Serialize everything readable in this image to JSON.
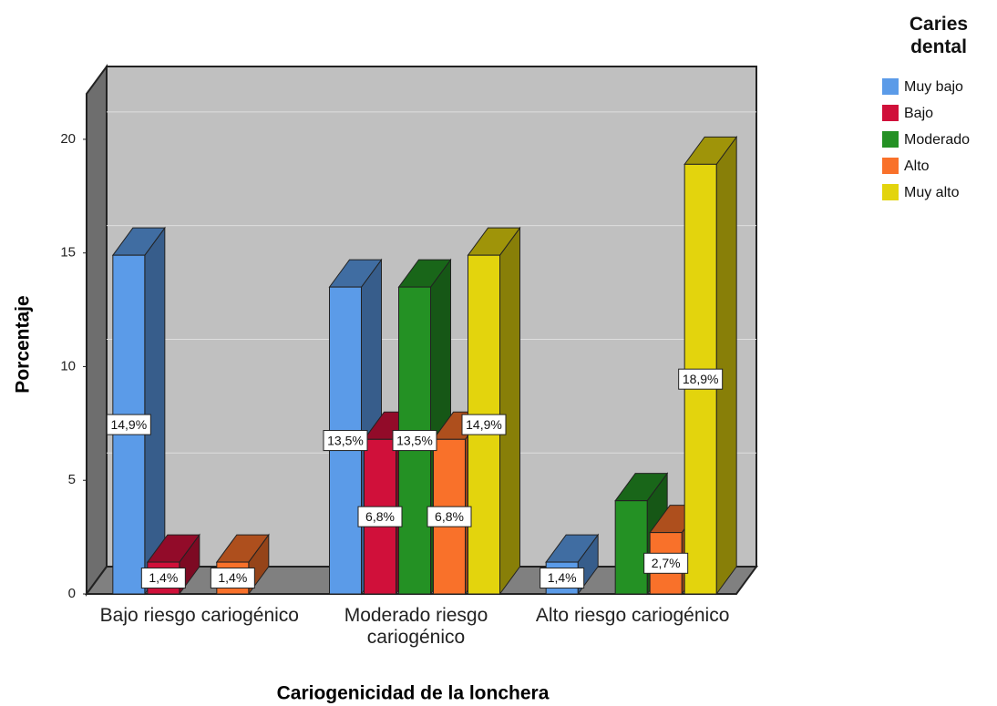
{
  "chart_data": {
    "type": "bar3d",
    "xlabel": "Cariogenicidad de la lonchera",
    "ylabel": "Porcentaje",
    "legend_title": "Caries dental",
    "legend": "right",
    "grid": true,
    "categories": [
      "Bajo riesgo cariogénico",
      "Moderado riesgo cariogénico",
      "Alto riesgo cariogénico"
    ],
    "ylim": [
      0,
      22
    ],
    "yticks": [
      0,
      5,
      10,
      15,
      20
    ],
    "series": [
      {
        "name": "Muy bajo",
        "color": "#5b9be8",
        "values": [
          14.9,
          13.5,
          1.4
        ],
        "value_labels": [
          "14,9%",
          "13,5%",
          "1,4%"
        ]
      },
      {
        "name": "Bajo",
        "color": "#d0103a",
        "values": [
          1.4,
          6.8,
          null
        ],
        "value_labels": [
          "1,4%",
          "6,8%",
          null
        ]
      },
      {
        "name": "Moderado",
        "color": "#249124",
        "values": [
          null,
          13.5,
          4.1
        ],
        "value_labels": [
          null,
          "13,5%",
          null
        ]
      },
      {
        "name": "Alto",
        "color": "#f9712a",
        "values": [
          1.4,
          6.8,
          2.7
        ],
        "value_labels": [
          "1,4%",
          "6,8%",
          "2,7%"
        ]
      },
      {
        "name": "Muy alto",
        "color": "#e3d40d",
        "values": [
          null,
          14.9,
          18.9
        ],
        "value_labels": [
          null,
          "14,9%",
          "18,9%"
        ]
      }
    ]
  }
}
